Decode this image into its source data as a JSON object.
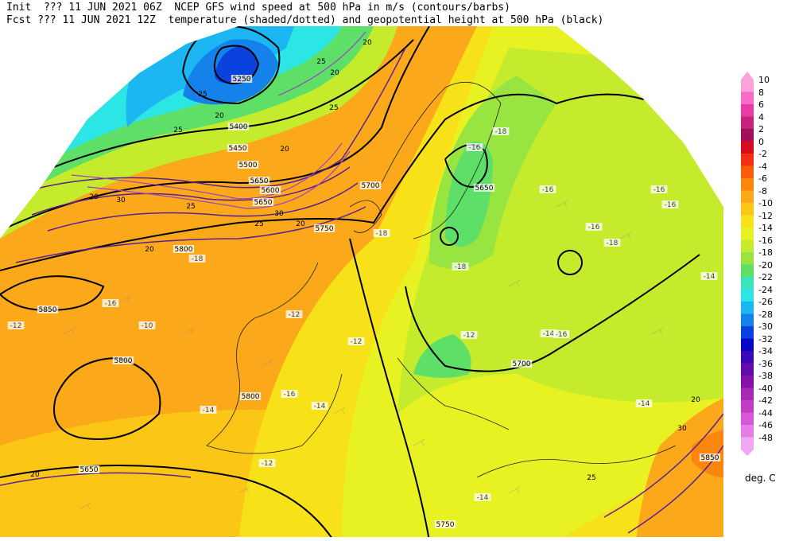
{
  "header": {
    "line1": "Init  ??? 11 JUN 2021 06Z  NCEP GFS wind speed at 500 hPa in m/s (contours/barbs)",
    "line2": "Fcst ??? 11 JUN 2021 12Z  temperature (shaded/dotted) and geopotential height at 500 hPa (black)"
  },
  "colorbar": {
    "units": "deg. C",
    "levels": [
      {
        "label": "10",
        "color": "#f9a3d9"
      },
      {
        "label": "8",
        "color": "#f76cc6"
      },
      {
        "label": "6",
        "color": "#e93aa6"
      },
      {
        "label": "4",
        "color": "#c8227f"
      },
      {
        "label": "2",
        "color": "#a0105a"
      },
      {
        "label": "0",
        "color": "#d80a1e"
      },
      {
        "label": "-2",
        "color": "#f43013"
      },
      {
        "label": "-4",
        "color": "#fa5c0c"
      },
      {
        "label": "-6",
        "color": "#fb860d"
      },
      {
        "label": "-8",
        "color": "#fba81a"
      },
      {
        "label": "-10",
        "color": "#fcc617"
      },
      {
        "label": "-12",
        "color": "#f7e21a"
      },
      {
        "label": "-14",
        "color": "#e8f222"
      },
      {
        "label": "-16",
        "color": "#c4ec2c"
      },
      {
        "label": "-18",
        "color": "#98e440"
      },
      {
        "label": "-20",
        "color": "#5ee068"
      },
      {
        "label": "-22",
        "color": "#3ae4b8"
      },
      {
        "label": "-24",
        "color": "#2ce6e6"
      },
      {
        "label": "-26",
        "color": "#1cb6f2"
      },
      {
        "label": "-28",
        "color": "#1482ea"
      },
      {
        "label": "-30",
        "color": "#0a42de"
      },
      {
        "label": "-32",
        "color": "#0808c4"
      },
      {
        "label": "-34",
        "color": "#3a08b4"
      },
      {
        "label": "-36",
        "color": "#620cae"
      },
      {
        "label": "-38",
        "color": "#8412aa"
      },
      {
        "label": "-40",
        "color": "#a62ab4"
      },
      {
        "label": "-42",
        "color": "#c23cc4"
      },
      {
        "label": "-44",
        "color": "#d658d6"
      },
      {
        "label": "-46",
        "color": "#e47ee6"
      },
      {
        "label": "-48",
        "color": "#f0a8f2"
      }
    ]
  },
  "map_labels": {
    "height": [
      "5250",
      "5400",
      "5450",
      "5500",
      "5650",
      "5600",
      "5650",
      "5700",
      "5750",
      "5800",
      "5850",
      "5800",
      "5800",
      "5650",
      "5850",
      "5750",
      "5700",
      "5650"
    ],
    "wind": [
      "25",
      "20",
      "25",
      "20",
      "20",
      "25",
      "30",
      "25",
      "20",
      "20",
      "20",
      "25",
      "30",
      "30",
      "20",
      "25",
      "20",
      "20",
      "25"
    ],
    "temp": [
      "-18",
      "-16",
      "-16",
      "-16",
      "-18",
      "-14",
      "-18",
      "-16",
      "-12",
      "-10",
      "-12",
      "-12",
      "-12",
      "-14",
      "-16",
      "-14",
      "-14",
      "-12",
      "-16",
      "-14",
      "-14",
      "-18",
      "-16",
      "-16",
      "-18"
    ]
  }
}
